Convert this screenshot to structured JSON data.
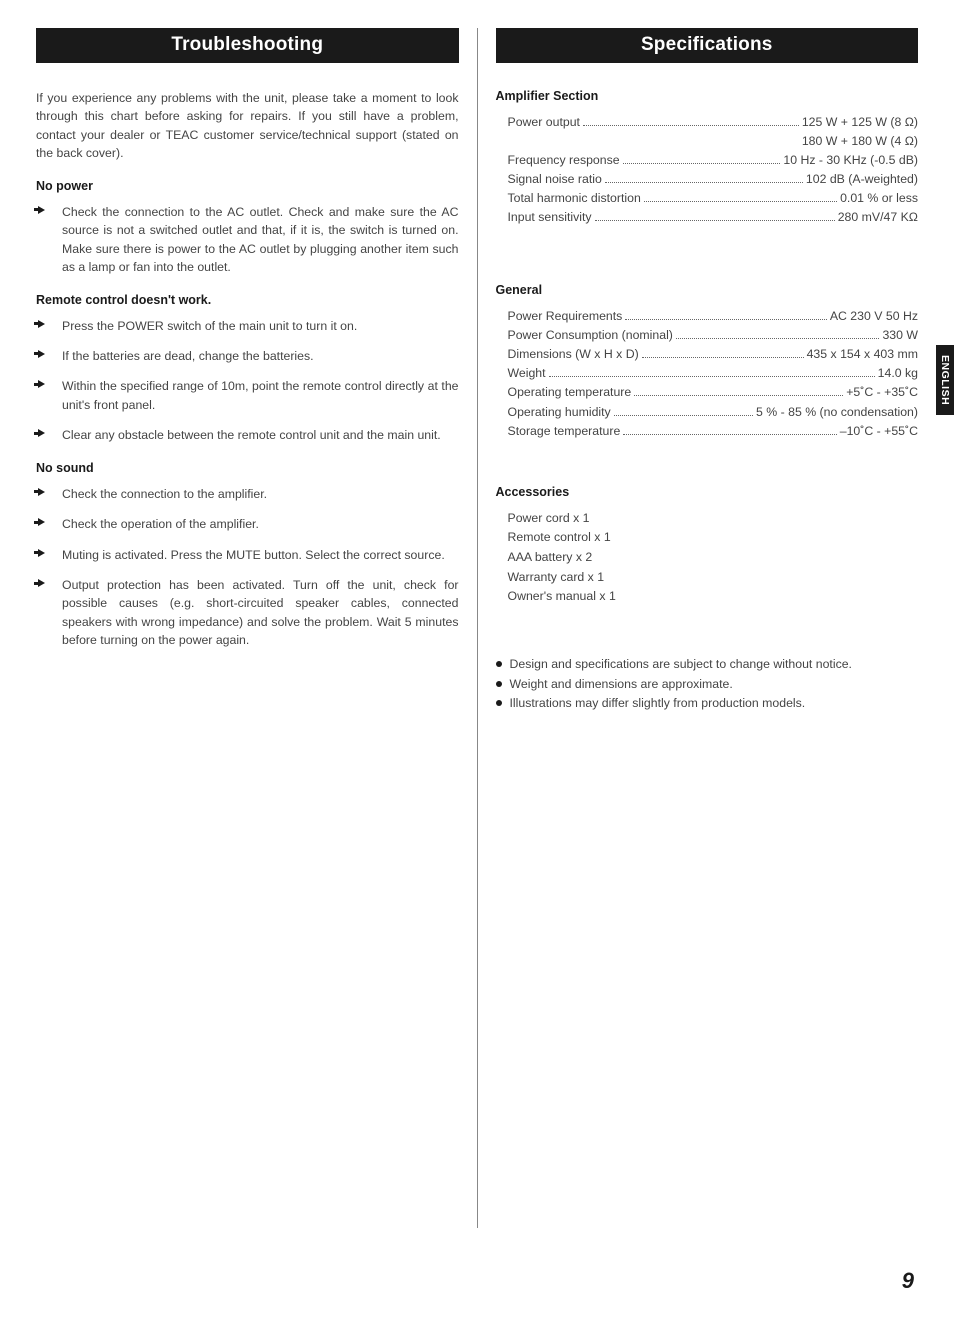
{
  "left": {
    "heading": "Troubleshooting",
    "intro": "If you experience any problems with the unit, please take a moment to look through this chart before asking for repairs. If you still have a problem, contact your dealer or TEAC customer service/technical support (stated on the back cover).",
    "groups": [
      {
        "title": "No power",
        "items": [
          "Check the connection to the AC outlet. Check and make sure the AC source is not a switched outlet and that, if it is, the switch is turned on. Make sure there is power to the AC outlet by plugging another item such as a lamp or fan into the outlet."
        ]
      },
      {
        "title": "Remote control doesn't work.",
        "items": [
          "Press the POWER switch of the main unit to turn it on.",
          "If the batteries are dead, change the batteries.",
          "Within the specified range of 10m, point the remote control directly at the unit's front panel.",
          "Clear any obstacle between the remote control unit and the main unit."
        ]
      },
      {
        "title": "No sound",
        "items": [
          "Check the connection to the amplifier.",
          "Check the operation of the amplifier.",
          "Muting is activated. Press the MUTE button. Select the correct source.",
          "Output protection has been activated. Turn off the unit, check for possible causes (e.g. short-circuited speaker cables, connected speakers with wrong impedance) and solve the problem. Wait 5 minutes before turning on the power again."
        ]
      }
    ]
  },
  "right": {
    "heading": "Specifications",
    "sections": [
      {
        "title": "Amplifier Section",
        "rows": [
          {
            "label": "Power output",
            "value": "125 W + 125 W (8 Ω)"
          },
          {
            "label": "",
            "value": "180 W + 180 W (4 Ω)",
            "rightOnly": true
          },
          {
            "label": "Frequency response",
            "value": "10 Hz - 30 KHz (-0.5 dB)"
          },
          {
            "label": "Signal noise ratio",
            "value": "102 dB (A-weighted)"
          },
          {
            "label": "Total harmonic distortion",
            "value": "0.01 % or less"
          },
          {
            "label": "Input sensitivity",
            "value": "280 mV/47 KΩ"
          }
        ]
      },
      {
        "title": "General",
        "rows": [
          {
            "label": "Power Requirements",
            "value": "AC 230 V 50 Hz"
          },
          {
            "label": "Power Consumption (nominal)",
            "value": "330 W"
          },
          {
            "label": "Dimensions (W x H x D)",
            "value": "435 x 154 x 403 mm"
          },
          {
            "label": "Weight",
            "value": "14.0 kg"
          },
          {
            "label": "Operating temperature",
            "value": "+5˚C - +35˚C"
          },
          {
            "label": "Operating humidity",
            "value": "5 % - 85 % (no condensation)"
          },
          {
            "label": "Storage temperature",
            "value": "–10˚C - +55˚C"
          }
        ]
      }
    ],
    "accessories": {
      "title": "Accessories",
      "items": [
        "Power cord x 1",
        "Remote control x 1",
        "AAA battery x 2",
        "Warranty card x 1",
        "Owner's manual x 1"
      ]
    },
    "notes": [
      "Design and specifications are subject to change without notice.",
      "Weight and dimensions are approximate.",
      "Illustrations may differ slightly from production models."
    ]
  },
  "sideTab": "ENGLISH",
  "pageNumber": "9"
}
